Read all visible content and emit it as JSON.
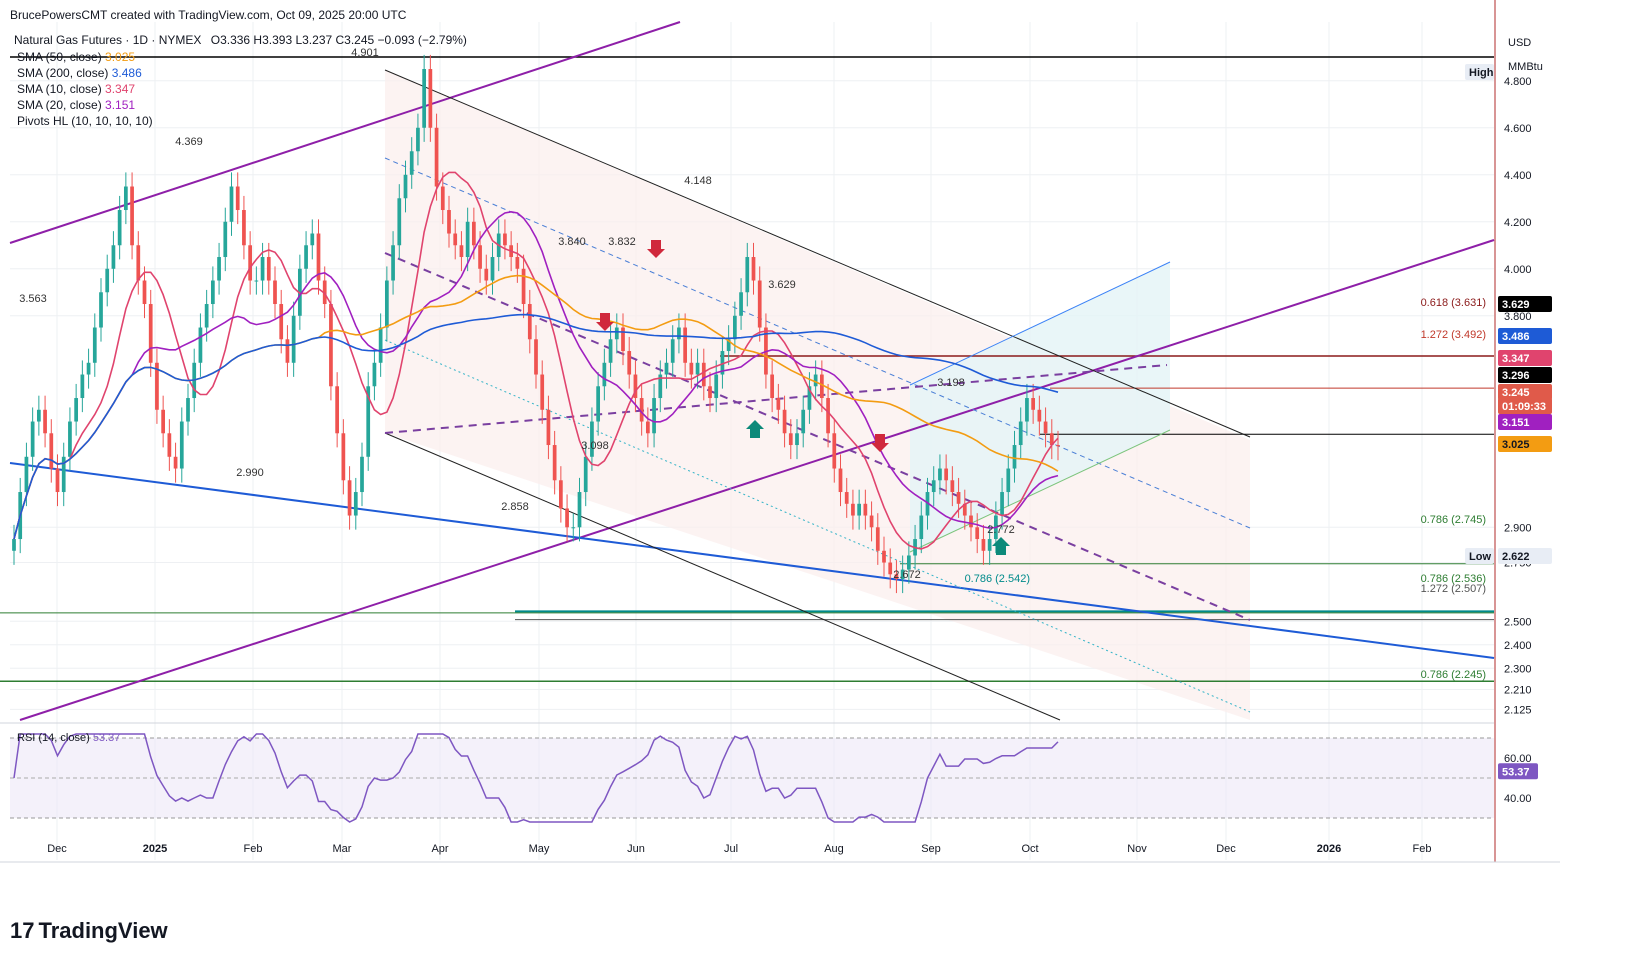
{
  "header": {
    "credit": "BrucePowersCMT created with TradingView.com, Oct 09, 2025 20:00 UTC",
    "symbol_line": "Natural Gas Futures · 1D · NYMEX",
    "ohlc": "O3.336  H3.393  L3.237  C3.245  −0.093 (−2.79%)"
  },
  "legend": [
    {
      "label": "SMA (50, close)",
      "value": "3.025",
      "color": "#f39c12"
    },
    {
      "label": "SMA (200, close)",
      "value": "3.486",
      "color": "#1e5bd6"
    },
    {
      "label": "SMA (10, close)",
      "value": "3.347",
      "color": "#e0446e"
    },
    {
      "label": "SMA (20, close)",
      "value": "3.151",
      "color": "#a020c0"
    },
    {
      "label": "Pivots HL (10, 10, 10, 10)",
      "value": "",
      "color": "#131722"
    }
  ],
  "rsi_legend": {
    "label": "RSI (14, close)",
    "value": "53.37"
  },
  "brand": {
    "text": "TradingView"
  },
  "chart_data": {
    "type": "candlestick",
    "y_unit": "USD / MMBtu",
    "ylim": [
      2.08,
      5.05
    ],
    "y_ticks": [
      "4.800",
      "4.600",
      "4.400",
      "4.200",
      "4.000",
      "3.800",
      "2.900",
      "2.750",
      "2.500",
      "2.400",
      "2.300",
      "2.210",
      "2.125"
    ],
    "x_ticks": [
      "Dec",
      "2025",
      "Feb",
      "Mar",
      "Apr",
      "May",
      "Jun",
      "Jul",
      "Aug",
      "Sep",
      "Oct",
      "Nov",
      "Dec",
      "2026",
      "Feb"
    ],
    "pivot_labels": [
      "4.901",
      "4.369",
      "3.563",
      "2.990",
      "4.148",
      "3.840",
      "3.832",
      "3.629",
      "3.098",
      "2.858",
      "3.198",
      "2.772",
      "2.672"
    ],
    "fib_labels": [
      "0.618 (3.631)",
      "1.272 (3.492)",
      "0.786 (2.745)",
      "0.786 (2.542)",
      "1.272 (2.507)",
      "0.786 (2.245)",
      "0.786 (2.536)"
    ],
    "price_tags": [
      {
        "text": "High",
        "value": 4.901,
        "bg": "#e8edf5",
        "fg": "#131722"
      },
      {
        "text": "3.629",
        "value": 3.629,
        "bg": "#000000",
        "fg": "#ffffff"
      },
      {
        "text": "3.486",
        "value": 3.486,
        "bg": "#1e5bd6",
        "fg": "#ffffff"
      },
      {
        "text": "3.347",
        "value": 3.347,
        "bg": "#e0446e",
        "fg": "#ffffff"
      },
      {
        "text": "3.296",
        "value": 3.296,
        "bg": "#000000",
        "fg": "#ffffff"
      },
      {
        "text": "3.245",
        "value": 3.245,
        "bg": "#e05a4a",
        "fg": "#ffffff"
      },
      {
        "text": "01:09:33",
        "value": 3.245,
        "bg": "#e05a4a",
        "fg": "#ffffff"
      },
      {
        "text": "3.151",
        "value": 3.151,
        "bg": "#a020c0",
        "fg": "#ffffff"
      },
      {
        "text": "3.025",
        "value": 3.025,
        "bg": "#f39c12",
        "fg": "#131722"
      },
      {
        "text": "Low",
        "value": 2.622,
        "bg": "#e8edf5",
        "fg": "#131722"
      },
      {
        "text": "2.622",
        "value": 2.622,
        "bg": "#e8edf5",
        "fg": "#131722"
      }
    ],
    "rsi": {
      "ylim": [
        25,
        75
      ],
      "ticks": [
        "60.00",
        "40.00"
      ],
      "last": 53.37
    },
    "series": [
      {
        "name": "Natural Gas Futures",
        "kind": "close",
        "values": [
          2.85,
          3.05,
          3.2,
          3.35,
          3.4,
          3.3,
          3.15,
          3.05,
          3.2,
          3.35,
          3.45,
          3.55,
          3.6,
          3.75,
          3.9,
          4.0,
          4.1,
          4.25,
          4.35,
          4.1,
          3.95,
          3.85,
          3.6,
          3.4,
          3.3,
          3.2,
          3.15,
          3.35,
          3.45,
          3.6,
          3.75,
          3.85,
          3.95,
          4.05,
          4.2,
          4.35,
          4.25,
          4.1,
          3.95,
          3.95,
          4.05,
          3.95,
          3.85,
          3.7,
          3.6,
          3.8,
          4.0,
          4.1,
          4.15,
          3.95,
          3.85,
          3.5,
          3.3,
          3.1,
          2.95,
          3.05,
          3.2,
          3.5,
          3.6,
          3.75,
          3.95,
          4.1,
          4.3,
          4.4,
          4.5,
          4.6,
          4.85,
          4.6,
          4.35,
          4.25,
          4.15,
          4.1,
          4.05,
          4.2,
          4.1,
          4.0,
          3.95,
          4.05,
          4.15,
          4.1,
          4.05,
          4.0,
          3.85,
          3.7,
          3.55,
          3.4,
          3.25,
          3.1,
          2.98,
          2.9,
          2.9,
          3.05,
          3.2,
          3.35,
          3.5,
          3.6,
          3.7,
          3.75,
          3.65,
          3.55,
          3.45,
          3.35,
          3.3,
          3.45,
          3.55,
          3.6,
          3.7,
          3.75,
          3.6,
          3.55,
          3.6,
          3.5,
          3.45,
          3.55,
          3.65,
          3.7,
          3.8,
          3.9,
          4.05,
          3.95,
          3.75,
          3.55,
          3.45,
          3.4,
          3.3,
          3.25,
          3.3,
          3.4,
          3.5,
          3.55,
          3.45,
          3.3,
          3.15,
          3.05,
          3.0,
          2.95,
          3.0,
          2.95,
          2.9,
          2.8,
          2.75,
          2.7,
          2.68,
          2.72,
          2.78,
          2.85,
          2.95,
          3.05,
          3.1,
          3.15,
          3.1,
          3.05,
          3.0,
          2.95,
          2.9,
          2.85,
          2.8,
          2.85,
          2.95,
          3.05,
          3.15,
          3.25,
          3.35,
          3.45,
          3.4,
          3.35,
          3.3,
          3.25,
          3.245
        ]
      },
      {
        "name": "SMA (10, close)",
        "value": 3.347
      },
      {
        "name": "SMA (20, close)",
        "value": 3.151
      },
      {
        "name": "SMA (50, close)",
        "value": 3.025
      },
      {
        "name": "SMA (200, close)",
        "value": 3.486
      }
    ]
  },
  "colors": {
    "up": "#26a69a",
    "down": "#ef5350",
    "grid": "#eef0f3",
    "channel_fill": "#fbeeec"
  }
}
